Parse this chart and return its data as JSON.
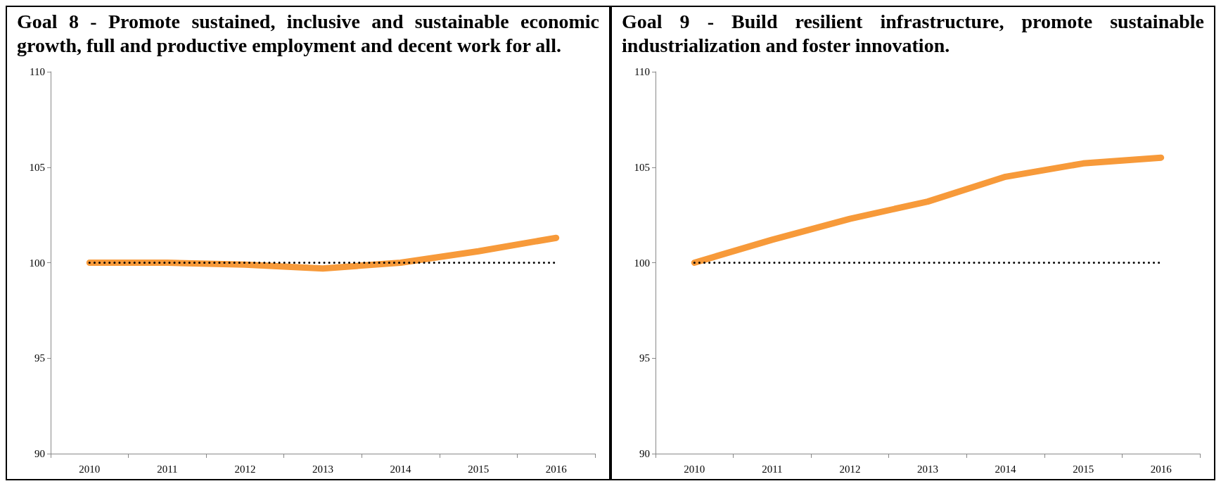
{
  "chart_data": [
    {
      "type": "line",
      "title": "Goal 8 - Promote sustained, inclusive and sustainable economic growth, full and productive employment and decent work for all.",
      "categories": [
        "2010",
        "2011",
        "2012",
        "2013",
        "2014",
        "2015",
        "2016"
      ],
      "ylim": [
        90,
        110
      ],
      "yticks": [
        90,
        95,
        100,
        105,
        110
      ],
      "grid": false,
      "marker": "none",
      "series": [
        {
          "color": "#f79a3a",
          "values": [
            100,
            100,
            99.9,
            99.7,
            100,
            100.6,
            101.3
          ]
        },
        {
          "color": "#000000",
          "line_style": "dotted",
          "values": [
            100,
            100,
            100,
            100,
            100,
            100,
            100
          ]
        }
      ]
    },
    {
      "type": "line",
      "title": "Goal 9 - Build resilient infrastructure, promote sustainable industrialization and foster innovation.",
      "categories": [
        "2010",
        "2011",
        "2012",
        "2013",
        "2014",
        "2015",
        "2016"
      ],
      "ylim": [
        90,
        110
      ],
      "yticks": [
        90,
        95,
        100,
        105,
        110
      ],
      "grid": false,
      "marker": "none",
      "series": [
        {
          "color": "#f79a3a",
          "values": [
            100,
            101.2,
            102.3,
            103.2,
            104.5,
            105.2,
            105.5
          ]
        },
        {
          "color": "#000000",
          "line_style": "dotted",
          "values": [
            100,
            100,
            100,
            100,
            100,
            100,
            100
          ]
        }
      ]
    }
  ]
}
